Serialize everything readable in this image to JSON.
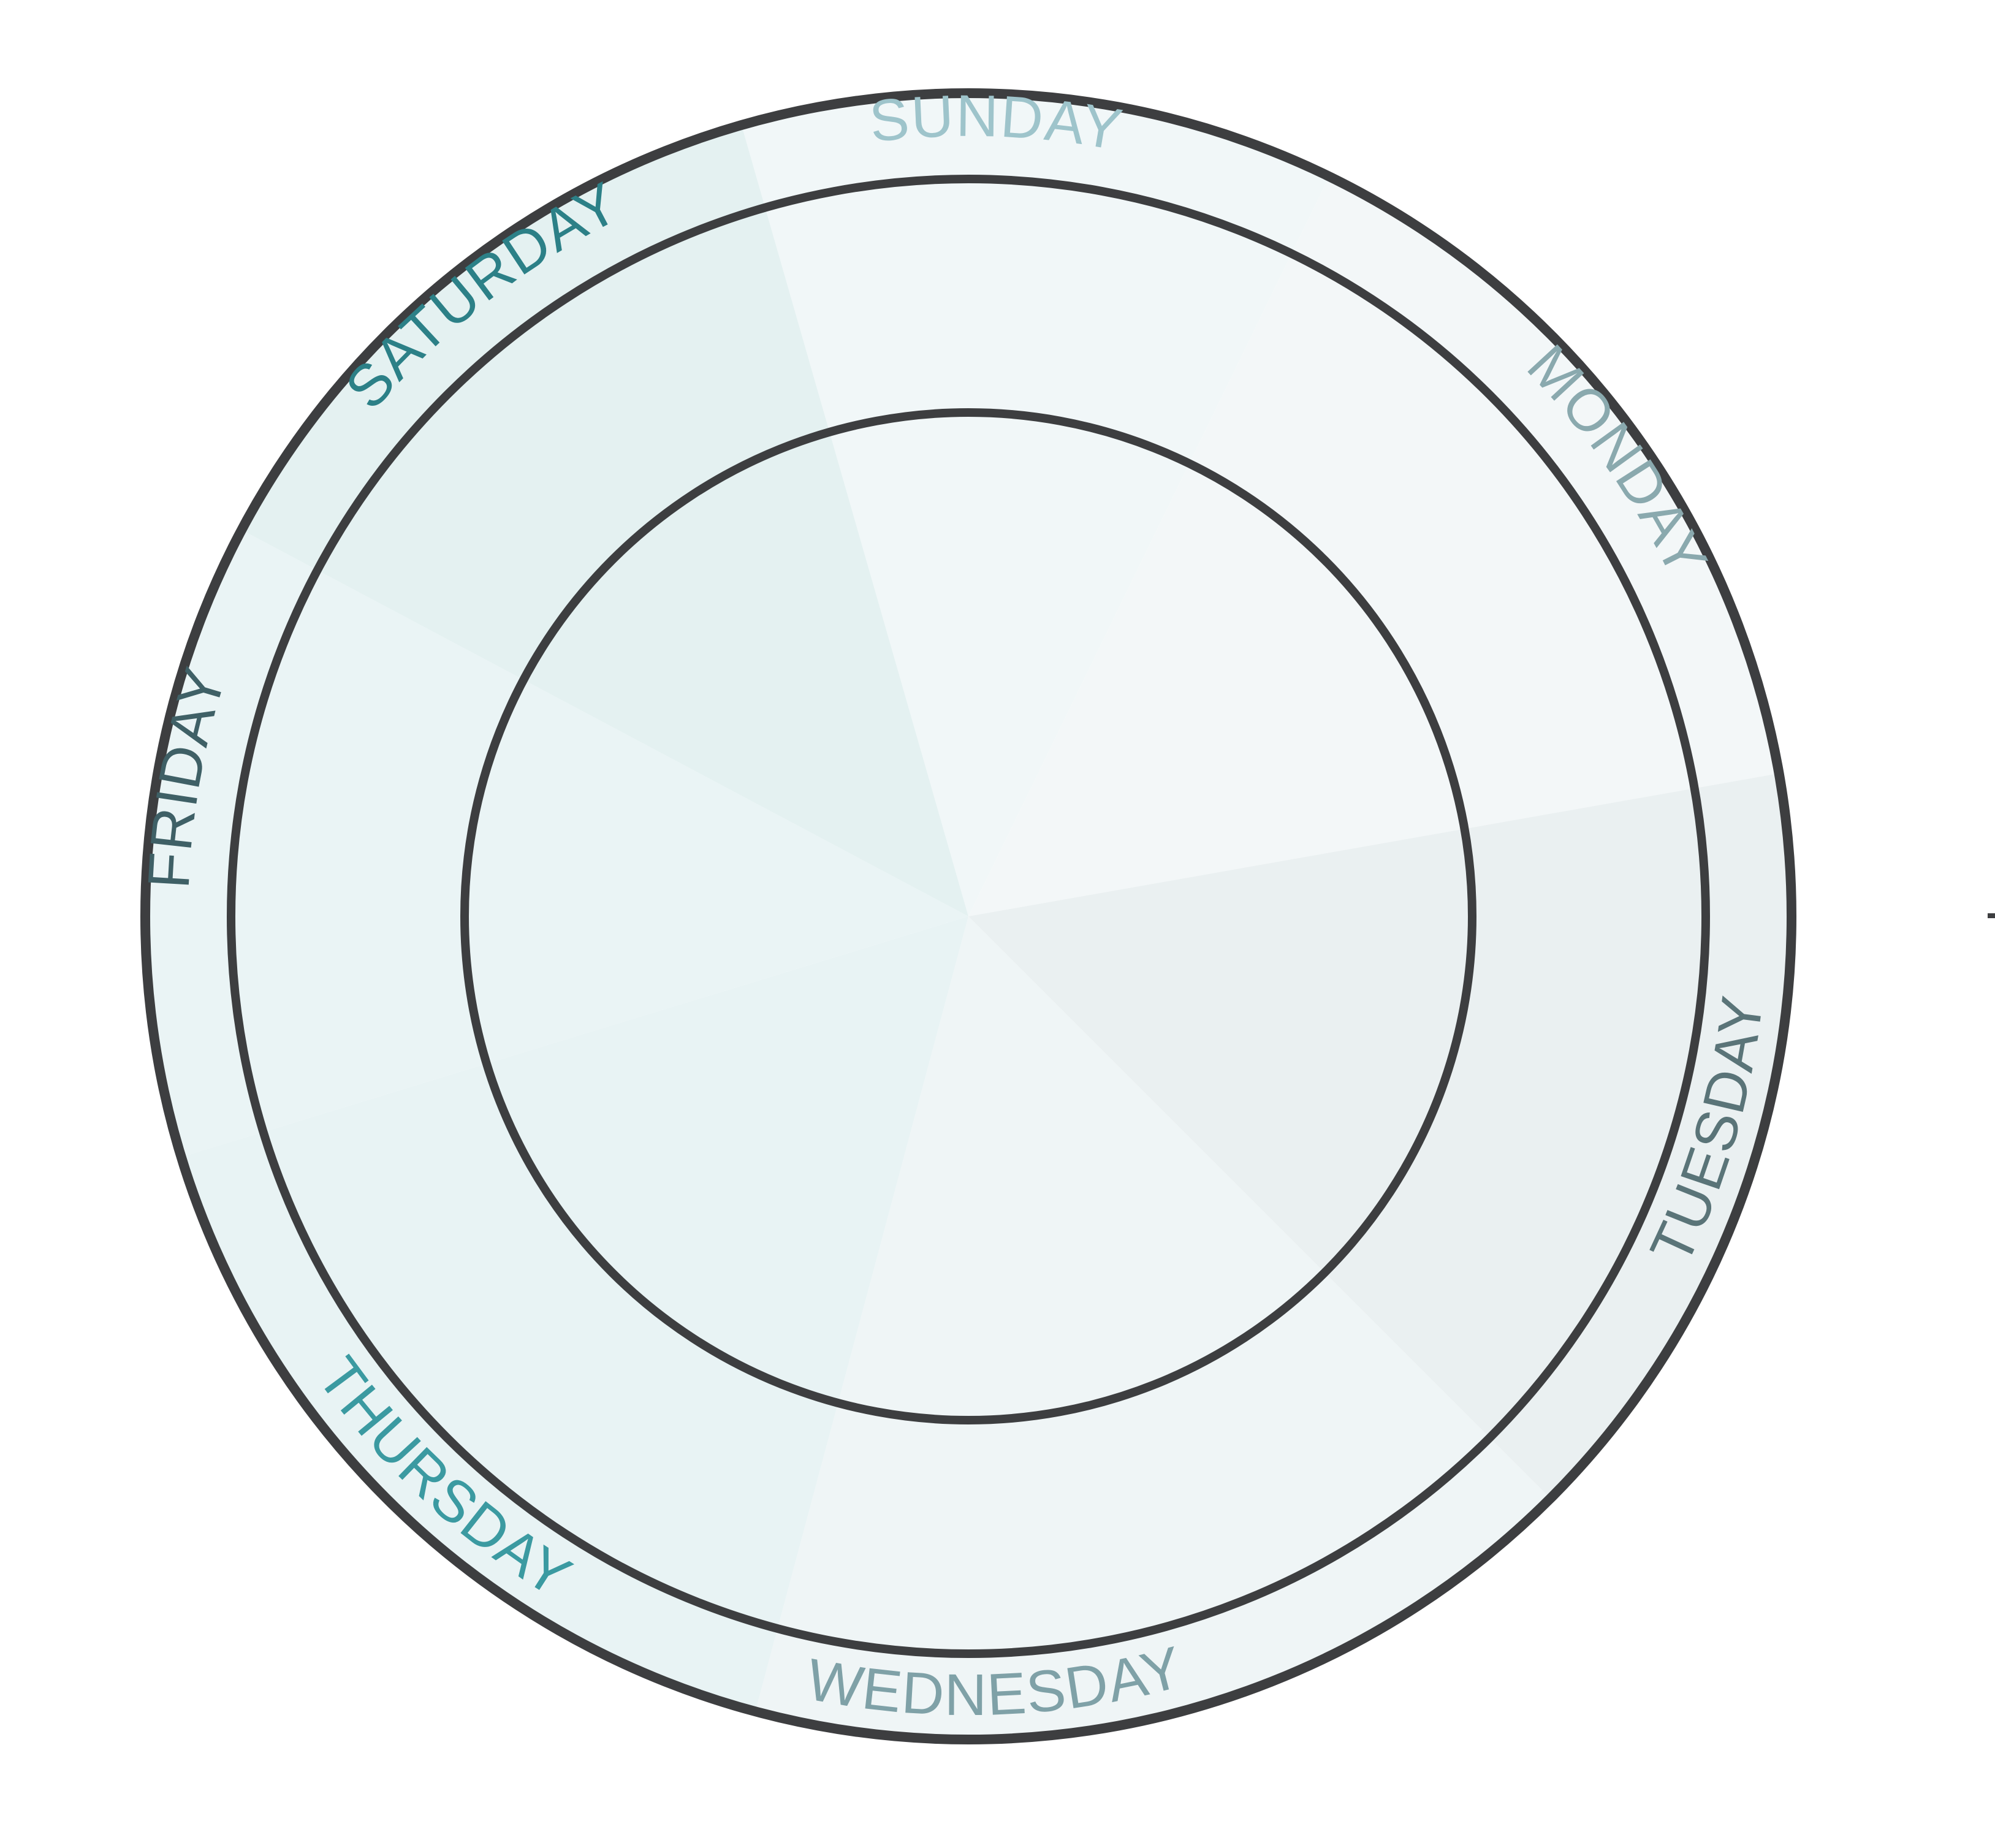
{
  "days": [
    {
      "key": "sunday",
      "label": "SUNDAY",
      "label_color": "#9ec4cb",
      "fill": "#f1f7f8"
    },
    {
      "key": "monday",
      "label": "MONDAY",
      "label_color": "#8aa9ae",
      "fill": "#f3f7f8"
    },
    {
      "key": "tuesday",
      "label": "TUESDAY",
      "label_color": "#5a7478",
      "fill": "#eaf0f1"
    },
    {
      "key": "wednesday",
      "label": "WEDNESDAY",
      "label_color": "#7fa1a7",
      "fill": "#eff5f6"
    },
    {
      "key": "thursday",
      "label": "THURSDAY",
      "label_color": "#3b9aa1",
      "fill": "#e8f3f4"
    },
    {
      "key": "friday",
      "label": "FRIDAY",
      "label_color": "#3f6066",
      "fill": "#eaf4f5"
    },
    {
      "key": "saturday",
      "label": "SATURDAY",
      "label_color": "#2c8087",
      "fill": "#e4f1f1"
    }
  ],
  "colors": {
    "ring_stroke": "#3d3e40",
    "background": "#ffffff"
  }
}
